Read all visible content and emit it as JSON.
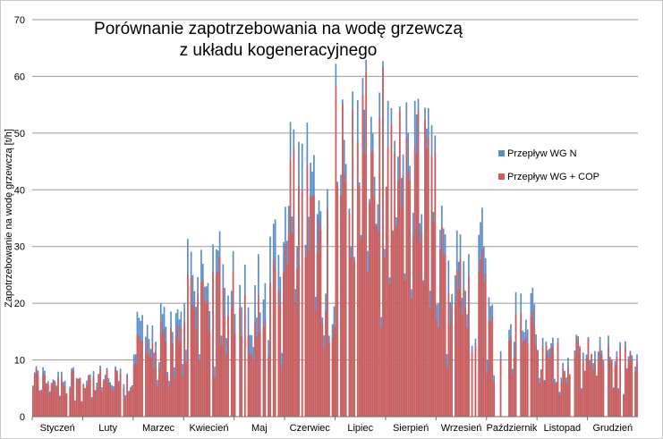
{
  "chart_data": {
    "type": "bar",
    "title": "Porównanie zapotrzebowania na wodę grzewczą z układu kogeneracyjnego",
    "xlabel": "",
    "ylabel": "Zapotrzebowanie na wodę grzewczą [t/h]",
    "ylim": [
      0,
      70
    ],
    "yticks": [
      0,
      10,
      20,
      30,
      40,
      50,
      60,
      70
    ],
    "grid": true,
    "legend_position": "right",
    "categories": [
      "Styczeń",
      "Luty",
      "Marzec",
      "Kwiecień",
      "Maj",
      "Czerwiec",
      "Lipiec",
      "Sierpień",
      "Wrzesień",
      "Październik",
      "Listopad",
      "Grudzień"
    ],
    "series": [
      {
        "name": "Przepływ WG N",
        "color": "#5b8dc9",
        "monthly_peaks": [
          9.5,
          9,
          20.5,
          33,
          35.5,
          53,
          63,
          58,
          39,
          23,
          14.5,
          14.5
        ]
      },
      {
        "name": "Przepływ WG + COP",
        "color": "#d05c59",
        "monthly_peaks": [
          9.5,
          9,
          18,
          30,
          30,
          50,
          63,
          58,
          36,
          21,
          14.5,
          14.5
        ]
      }
    ]
  }
}
